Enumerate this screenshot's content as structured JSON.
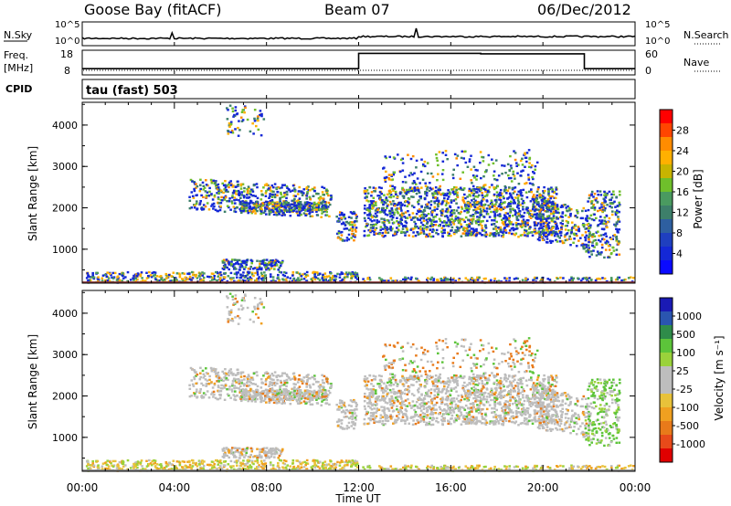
{
  "header": {
    "station": "Goose Bay (fitACF)",
    "beam": "Beam 07",
    "date": "06/Dec/2012"
  },
  "top_strip": {
    "left_label": "N.Sky",
    "right_label": "N.Search",
    "left_ticks": [
      "10^5",
      "10^0"
    ],
    "right_ticks": [
      "10^5",
      "10^0"
    ]
  },
  "freq_strip": {
    "left_label_1": "Freq.",
    "left_label_2": "[MHz]",
    "right_label": "Nave",
    "left_ticks": [
      "18",
      "8"
    ],
    "right_ticks": [
      "60",
      "0"
    ]
  },
  "cpid": {
    "label": "CPID",
    "value": "tau (fast) 503"
  },
  "power_panel": {
    "ylabel": "Slant Range [km]",
    "yticks": [
      "4000",
      "3000",
      "2000",
      "1000"
    ],
    "colorbar_label": "Power [dB]",
    "colorbar_ticks": [
      "28",
      "24",
      "20",
      "16",
      "12",
      "8",
      "4"
    ],
    "colorbar_colors": [
      "#ff0000",
      "#ff4500",
      "#ff8c00",
      "#ffb000",
      "#c8b400",
      "#6fbf2b",
      "#4a9a60",
      "#3d7f6a",
      "#2e5fa0",
      "#1f3fbf",
      "#1428d6",
      "#0a0aff"
    ]
  },
  "velocity_panel": {
    "ylabel": "Slant Range [km]",
    "yticks": [
      "4000",
      "3000",
      "2000",
      "1000"
    ],
    "colorbar_label": "Velocity [m s⁻¹]",
    "colorbar_ticks": [
      "1000",
      "500",
      "100",
      "25",
      "-25",
      "-100",
      "-500",
      "-1000"
    ],
    "colorbar_colors": [
      "#1a1ab4",
      "#2a55b0",
      "#2f8c4a",
      "#5cc43a",
      "#9ad23b",
      "#bdbdbd",
      "#bdbdbd",
      "#e8c23a",
      "#f0a020",
      "#e87a1a",
      "#e84a1a",
      "#e00000"
    ]
  },
  "xaxis": {
    "label": "Time UT",
    "ticks": [
      "00:00",
      "04:00",
      "08:00",
      "12:00",
      "16:00",
      "20:00",
      "00:00"
    ]
  },
  "chart_data": [
    {
      "type": "line",
      "title": "N.Sky / N.Search",
      "xlabel": "Time UT",
      "x_hours": [
        0,
        4,
        8,
        12,
        16,
        20,
        24
      ],
      "ylim": [
        1,
        100000
      ],
      "y_scale": "log"
    },
    {
      "type": "line",
      "title": "Freq. [MHz] / Nave",
      "xlabel": "Time UT",
      "ylim": [
        8,
        18
      ],
      "series": [
        {
          "name": "Freq.",
          "x_hours": [
            0,
            12.0,
            12.0,
            17.3,
            17.3,
            21.8,
            21.8,
            24
          ],
          "values": [
            10,
            10,
            17,
            17,
            16.8,
            16.8,
            10,
            10
          ]
        }
      ]
    },
    {
      "type": "heatmap",
      "title": "Power [dB]",
      "xlabel": "Time UT",
      "ylabel": "Slant Range [km]",
      "xlim_hours": [
        0,
        24
      ],
      "ylim": [
        180,
        4550
      ],
      "zlim": [
        0,
        30
      ]
    },
    {
      "type": "heatmap",
      "title": "Velocity [m s⁻¹]",
      "xlabel": "Time UT",
      "ylabel": "Slant Range [km]",
      "xlim_hours": [
        0,
        24
      ],
      "ylim": [
        180,
        4550
      ],
      "zlim": [
        -1000,
        1000
      ]
    }
  ]
}
